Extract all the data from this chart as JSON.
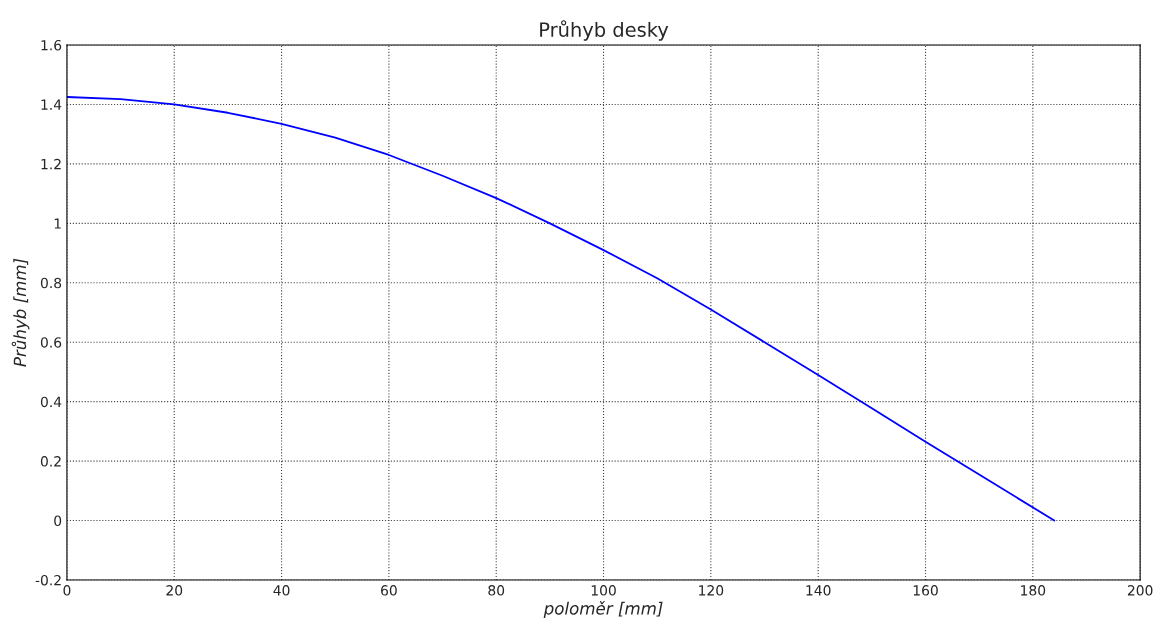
{
  "chart_data": {
    "type": "line",
    "title": "Průhyb desky",
    "xlabel": "poloměr [mm]",
    "ylabel": "Průhyb [mm]",
    "x": [
      0,
      10,
      20,
      30,
      40,
      50,
      60,
      70,
      80,
      90,
      100,
      110,
      120,
      130,
      140,
      150,
      160,
      170,
      184
    ],
    "series": [
      {
        "color": "#0000ff",
        "values": [
          1.425,
          1.418,
          1.4,
          1.372,
          1.335,
          1.288,
          1.23,
          1.16,
          1.085,
          1.0,
          0.91,
          0.815,
          0.71,
          0.6,
          0.49,
          0.378,
          0.265,
          0.155,
          0.0
        ]
      }
    ],
    "xlim": [
      0,
      200
    ],
    "ylim": [
      -0.2,
      1.6
    ],
    "xticks": [
      0,
      20,
      40,
      60,
      80,
      100,
      120,
      140,
      160,
      180,
      200
    ],
    "yticks": [
      -0.2,
      0,
      0.2,
      0.4,
      0.6,
      0.8,
      1,
      1.2,
      1.4,
      1.6
    ],
    "grid": true,
    "marker": "none",
    "line_style": "solid"
  }
}
